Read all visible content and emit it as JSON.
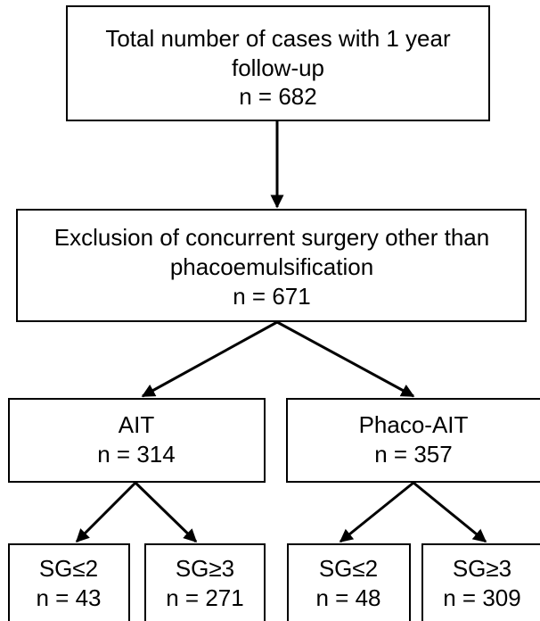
{
  "nodes": [
    {
      "lines": [
        "Total number of cases with 1 year",
        "follow-up",
        "n = 682"
      ]
    },
    {
      "lines": [
        "Exclusion of concurrent surgery other than",
        "phacoemulsification",
        "n = 671"
      ]
    },
    {
      "lines": [
        "AIT",
        "n = 314"
      ]
    },
    {
      "lines": [
        "Phaco-AIT",
        "n = 357"
      ]
    },
    {
      "lines": [
        "SG≤2",
        "n = 43"
      ]
    },
    {
      "lines": [
        "SG≥3",
        "n = 271"
      ]
    },
    {
      "lines": [
        "SG≤2",
        "n = 48"
      ]
    },
    {
      "lines": [
        "SG≥3",
        "n = 309"
      ]
    }
  ]
}
